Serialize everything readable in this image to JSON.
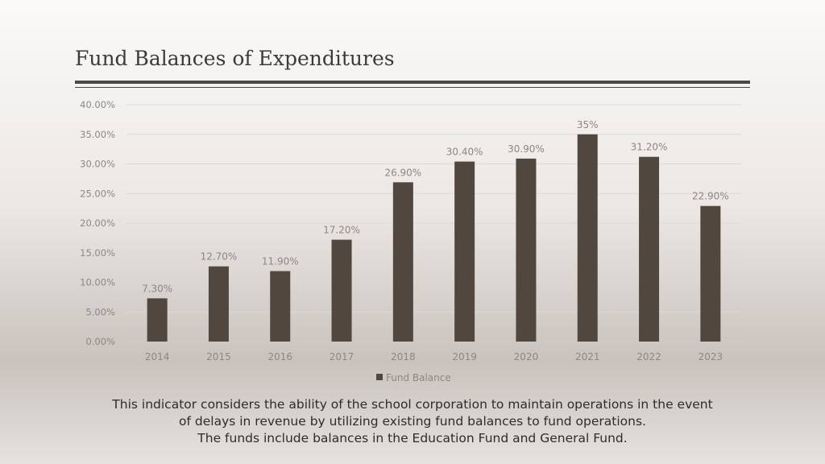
{
  "page": {
    "title": "Fund Balances of Expenditures",
    "caption_lines": [
      "This indicator considers the ability of the school corporation to maintain operations in the event",
      "of delays in revenue by utilizing existing fund balances to fund operations.",
      "The funds include balances in the Education Fund and General Fund."
    ]
  },
  "colors": {
    "bar": "#52473f",
    "text": "#3e3a38",
    "muted": "#8c8784",
    "grid": "#ded9d6"
  },
  "chart_data": {
    "type": "bar",
    "categories": [
      "2014",
      "2015",
      "2016",
      "2017",
      "2018",
      "2019",
      "2020",
      "2021",
      "2022",
      "2023"
    ],
    "series": [
      {
        "name": "Fund  Balance",
        "values": [
          7.3,
          12.7,
          11.9,
          17.2,
          26.9,
          30.4,
          30.9,
          35,
          31.2,
          22.9
        ],
        "data_labels": [
          "7.30%",
          "12.70%",
          "11.90%",
          "17.20%",
          "26.90%",
          "30.40%",
          "30.90%",
          "35%",
          "31.20%",
          "22.90%"
        ]
      }
    ],
    "ylim": [
      0,
      40
    ],
    "yticks": [
      0,
      5,
      10,
      15,
      20,
      25,
      30,
      35,
      40
    ],
    "ytick_labels": [
      "0.00%",
      "5.00%",
      "10.00%",
      "15.00%",
      "20.00%",
      "25.00%",
      "30.00%",
      "35.00%",
      "40.00%"
    ],
    "grid": true,
    "legend": "bottom"
  }
}
